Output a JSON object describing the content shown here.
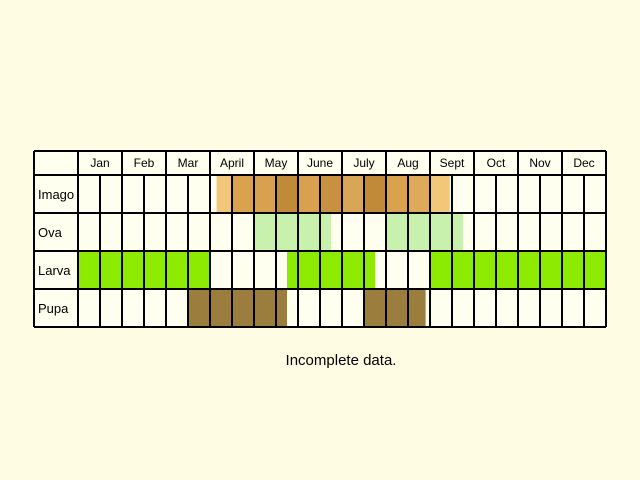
{
  "chart_data": {
    "type": "table",
    "months": [
      "Jan",
      "Feb",
      "Mar",
      "April",
      "May",
      "June",
      "July",
      "Aug",
      "Sept",
      "Oct",
      "Nov",
      "Dec"
    ],
    "stages": [
      {
        "label": "Imago",
        "periods": [
          {
            "start": 3.15,
            "end": 3.5,
            "color": "#f2c77a"
          },
          {
            "start": 3.5,
            "end": 4.0,
            "color": "#daa24e"
          },
          {
            "start": 4.0,
            "end": 4.5,
            "color": "#d9a050"
          },
          {
            "start": 4.5,
            "end": 5.0,
            "color": "#c08a38"
          },
          {
            "start": 5.0,
            "end": 5.5,
            "color": "#d9a050"
          },
          {
            "start": 5.5,
            "end": 6.0,
            "color": "#c99042"
          },
          {
            "start": 6.0,
            "end": 6.5,
            "color": "#d9a556"
          },
          {
            "start": 6.5,
            "end": 7.0,
            "color": "#c08a38"
          },
          {
            "start": 7.0,
            "end": 7.5,
            "color": "#daa24e"
          },
          {
            "start": 7.5,
            "end": 8.0,
            "color": "#dda95a"
          },
          {
            "start": 8.0,
            "end": 8.45,
            "color": "#f2c77a"
          }
        ]
      },
      {
        "label": "Ova",
        "periods": [
          {
            "start": 4.0,
            "end": 5.75,
            "color": "#c7f1ad"
          },
          {
            "start": 7.0,
            "end": 8.75,
            "color": "#c7f1ad"
          }
        ]
      },
      {
        "label": "Larva",
        "periods": [
          {
            "start": 0.0,
            "end": 3.0,
            "color": "#8ceb00"
          },
          {
            "start": 4.75,
            "end": 6.75,
            "color": "#8ceb00"
          },
          {
            "start": 8.0,
            "end": 12.0,
            "color": "#8ceb00"
          }
        ]
      },
      {
        "label": "Pupa",
        "periods": [
          {
            "start": 2.5,
            "end": 4.75,
            "color": "#9b7d3e"
          },
          {
            "start": 6.5,
            "end": 7.9,
            "color": "#9b7d3e"
          }
        ]
      }
    ],
    "note": "Incomplete data."
  }
}
